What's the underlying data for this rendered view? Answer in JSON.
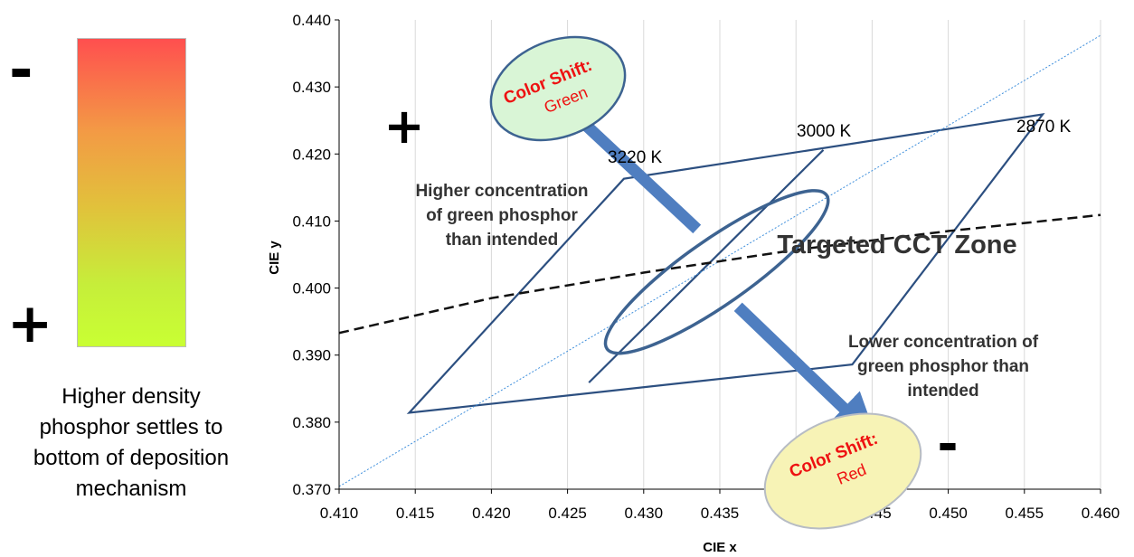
{
  "left_panel": {
    "minus_top": "-",
    "plus_bottom": "+",
    "caption": "Higher density\nphosphor settles to\nbottom of deposition\nmechanism"
  },
  "colors": {
    "gradient_top": "#ff4f4f",
    "gradient_bottom": "#c9ff33",
    "zone_lines": "#2c4f80",
    "arrow_fill": "#4f7ec0",
    "green_bubble": "#d9f5d6",
    "red_bubble": "#f7f3b6",
    "bubble_text": "#ee1111"
  },
  "chart_data": {
    "type": "line",
    "xlabel": "CIE x",
    "ylabel": "CIE y",
    "xlim": [
      0.41,
      0.46
    ],
    "ylim": [
      0.37,
      0.44
    ],
    "xticks": [
      "0.410",
      "0.415",
      "0.420",
      "0.425",
      "0.430",
      "0.435",
      "0.440",
      "0.445",
      "0.450",
      "0.455",
      "0.460"
    ],
    "yticks": [
      "0.370",
      "0.380",
      "0.390",
      "0.400",
      "0.410",
      "0.420",
      "0.430",
      "0.440"
    ],
    "grid": "vertical",
    "cct_zone": {
      "outline": [
        [
          0.4146,
          0.3814
        ],
        [
          0.4287,
          0.4163
        ],
        [
          0.4562,
          0.4259
        ],
        [
          0.4437,
          0.3886
        ]
      ],
      "divider": [
        [
          0.4264,
          0.3859
        ],
        [
          0.4418,
          0.4206
        ]
      ]
    },
    "planckian_locus": [
      [
        0.41,
        0.3933
      ],
      [
        0.42,
        0.3985
      ],
      [
        0.43,
        0.4023
      ],
      [
        0.44,
        0.4057
      ],
      [
        0.45,
        0.4085
      ],
      [
        0.46,
        0.4109
      ]
    ],
    "dotted_line": [
      [
        0.41,
        0.3704
      ],
      [
        0.46,
        0.4377
      ]
    ],
    "target_ellipse": {
      "cx": 0.4348,
      "cy": 0.4024,
      "rx": 0.0088,
      "ry": 0.0088,
      "rotation": -35
    },
    "arrows": [
      {
        "from": [
          0.4335,
          0.4088
        ],
        "to": [
          0.4255,
          0.4258
        ]
      },
      {
        "from": [
          0.4362,
          0.3972
        ],
        "to": [
          0.4434,
          0.3815
        ]
      }
    ],
    "labels": {
      "cct_3220": "3220 K",
      "cct_3000": "3000 K",
      "cct_2870": "2870 K",
      "zone": "Targeted CCT Zone",
      "higher_green": "Higher concentration\nof green phosphor\nthan intended",
      "lower_green": "Lower concentration of\ngreen phosphor than\nintended",
      "plus_sign": "+",
      "minus_sign": "-",
      "shift_green_title": "Color Shift:",
      "shift_green_value": "Green",
      "shift_red_title": "Color Shift:",
      "shift_red_value": "Red"
    }
  }
}
